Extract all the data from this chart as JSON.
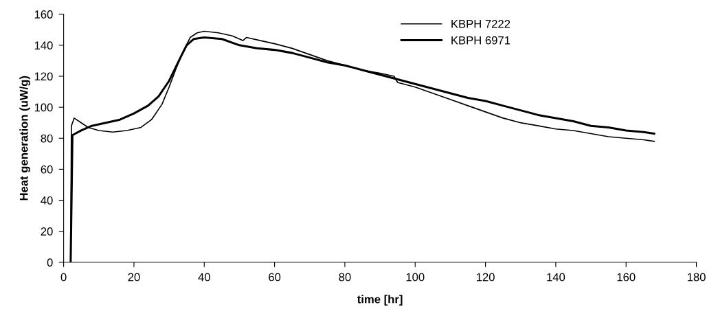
{
  "chart_data": {
    "type": "line",
    "xlabel": "time [hr]",
    "ylabel": "Heat generation (uW/g)",
    "xlim": [
      0,
      180
    ],
    "xticks": [
      0,
      20,
      40,
      60,
      80,
      100,
      120,
      140,
      160,
      180
    ],
    "ylim": [
      0,
      160
    ],
    "yticks": [
      0,
      20,
      40,
      60,
      80,
      100,
      120,
      140,
      160
    ],
    "grid": false,
    "legend": "top",
    "marker": "none",
    "line_style": "solid",
    "series": [
      {
        "name": "KBPH 7222",
        "color": "#000000",
        "x": [
          2,
          2.2,
          3,
          5,
          7,
          10,
          14,
          18,
          22,
          25,
          28,
          30,
          32,
          34,
          36,
          38,
          40,
          44,
          48,
          51,
          52,
          56,
          60,
          65,
          70,
          75,
          80,
          85,
          90,
          94,
          95,
          100,
          105,
          110,
          115,
          120,
          125,
          130,
          135,
          140,
          145,
          150,
          155,
          160,
          165,
          168
        ],
        "values": [
          0,
          88,
          93,
          90,
          87,
          85,
          84,
          85,
          87,
          92,
          102,
          113,
          125,
          136,
          145,
          148,
          149,
          148,
          146,
          143,
          145,
          143,
          141,
          138,
          134,
          130,
          127,
          124,
          122,
          120,
          116,
          113,
          109,
          105,
          101,
          97,
          93,
          90,
          88,
          86,
          85,
          83,
          81,
          80,
          79,
          78
        ]
      },
      {
        "name": "KBPH 6971",
        "color": "#000000",
        "x": [
          2,
          2.5,
          5,
          8,
          12,
          16,
          20,
          24,
          27,
          30,
          33,
          35,
          37,
          40,
          45,
          50,
          55,
          60,
          65,
          70,
          75,
          80,
          85,
          90,
          95,
          100,
          105,
          110,
          115,
          120,
          125,
          130,
          135,
          140,
          145,
          150,
          155,
          160,
          165,
          168
        ],
        "values": [
          0,
          82,
          85,
          88,
          90,
          92,
          96,
          101,
          107,
          117,
          131,
          140,
          144,
          145,
          144,
          140,
          138,
          137,
          135,
          132,
          129,
          127,
          124,
          121,
          118,
          115,
          112,
          109,
          106,
          104,
          101,
          98,
          95,
          93,
          91,
          88,
          87,
          85,
          84,
          83
        ]
      }
    ]
  }
}
